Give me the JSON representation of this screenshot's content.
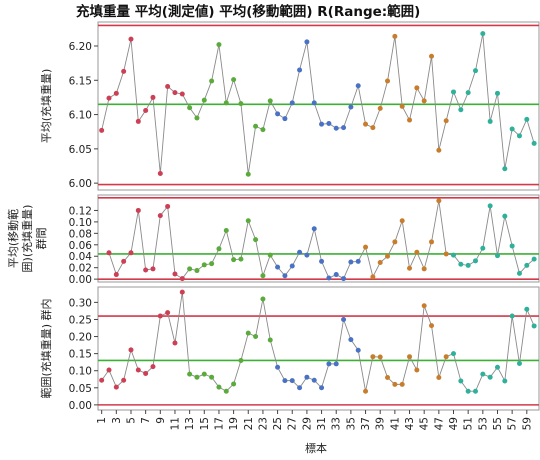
{
  "title": "充填重量 平均(測定値) 平均(移動範囲) R(Range:範囲)",
  "xlabel": "標本",
  "colors": {
    "limit": "#d23a4a",
    "center": "#3bb034",
    "connector": "#8a8a8a",
    "series": [
      "#cc3f55",
      "#5aab3c",
      "#4a72c4",
      "#c87d2c",
      "#2fb09a"
    ]
  },
  "xticks": [
    "1",
    "3",
    "5",
    "7",
    "9",
    "11",
    "13",
    "15",
    "17",
    "19",
    "21",
    "23",
    "25",
    "27",
    "29",
    "31",
    "33",
    "35",
    "37",
    "39",
    "41",
    "43",
    "45",
    "47",
    "49",
    "51",
    "53",
    "55",
    "57",
    "59"
  ],
  "chart_data": [
    {
      "type": "line",
      "panel": "mean",
      "ylabel": "平均(充填重量)",
      "ylim": [
        5.99,
        6.235
      ],
      "yticks": [
        "6.00",
        "6.05",
        "6.10",
        "6.15",
        "6.20"
      ],
      "ucl": 6.23,
      "cl": 6.115,
      "lcl": 5.998,
      "x": [
        1,
        2,
        3,
        4,
        5,
        6,
        7,
        8,
        9,
        10,
        11,
        12,
        13,
        14,
        15,
        16,
        17,
        18,
        19,
        20,
        21,
        22,
        23,
        24,
        25,
        26,
        27,
        28,
        29,
        30,
        31,
        32,
        33,
        34,
        35,
        36,
        37,
        38,
        39,
        40,
        41,
        42,
        43,
        44,
        45,
        46,
        47,
        48,
        49,
        50,
        51,
        52,
        53,
        54,
        55,
        56,
        57,
        58,
        59,
        60
      ],
      "values": [
        6.077,
        6.124,
        6.131,
        6.163,
        6.21,
        6.09,
        6.106,
        6.125,
        6.014,
        6.141,
        6.132,
        6.13,
        6.11,
        6.095,
        6.121,
        6.149,
        6.202,
        6.117,
        6.151,
        6.116,
        6.013,
        6.083,
        6.078,
        6.12,
        6.101,
        6.094,
        6.117,
        6.165,
        6.206,
        6.117,
        6.086,
        6.087,
        6.08,
        6.081,
        6.111,
        6.142,
        6.086,
        6.081,
        6.109,
        6.149,
        6.214,
        6.112,
        6.092,
        6.139,
        6.12,
        6.185,
        6.048,
        6.091,
        6.133,
        6.107,
        6.132,
        6.164,
        6.218,
        6.09,
        6.131,
        6.021,
        6.079,
        6.069,
        6.093,
        6.058
      ],
      "series_colors": [
        0,
        0,
        0,
        0,
        0,
        0,
        0,
        0,
        0,
        0,
        0,
        0,
        1,
        1,
        1,
        1,
        1,
        1,
        1,
        1,
        1,
        1,
        1,
        1,
        2,
        2,
        2,
        2,
        2,
        2,
        2,
        2,
        2,
        2,
        2,
        2,
        3,
        3,
        3,
        3,
        3,
        3,
        3,
        3,
        3,
        3,
        3,
        3,
        4,
        4,
        4,
        4,
        4,
        4,
        4,
        4,
        4,
        4,
        4,
        4
      ]
    },
    {
      "type": "line",
      "panel": "moving-range",
      "ylabel": [
        "平均(移動範",
        "囲)(充填重量)",
        "群間"
      ],
      "ylim": [
        -0.005,
        0.147
      ],
      "yticks": [
        "0.00",
        "0.02",
        "0.04",
        "0.06",
        "0.08",
        "0.10",
        "0.12"
      ],
      "ucl": 0.142,
      "cl": 0.044,
      "lcl": 0.0,
      "x": [
        2,
        3,
        4,
        5,
        6,
        7,
        8,
        9,
        10,
        11,
        12,
        13,
        14,
        15,
        16,
        17,
        18,
        19,
        20,
        21,
        22,
        23,
        24,
        25,
        26,
        27,
        28,
        29,
        30,
        31,
        32,
        33,
        34,
        35,
        36,
        37,
        38,
        39,
        40,
        41,
        42,
        43,
        44,
        45,
        46,
        47,
        48,
        49,
        50,
        51,
        52,
        53,
        54,
        55,
        56,
        57,
        58,
        59,
        60
      ],
      "values": [
        0.046,
        0.008,
        0.031,
        0.046,
        0.12,
        0.016,
        0.018,
        0.111,
        0.127,
        0.009,
        0.001,
        0.018,
        0.015,
        0.025,
        0.027,
        0.053,
        0.085,
        0.034,
        0.035,
        0.102,
        0.069,
        0.006,
        0.042,
        0.021,
        0.006,
        0.023,
        0.047,
        0.042,
        0.088,
        0.031,
        0.002,
        0.008,
        0.001,
        0.03,
        0.031,
        0.056,
        0.004,
        0.029,
        0.04,
        0.065,
        0.102,
        0.019,
        0.047,
        0.018,
        0.065,
        0.137,
        0.044,
        0.042,
        0.026,
        0.024,
        0.032,
        0.054,
        0.128,
        0.041,
        0.11,
        0.058,
        0.01,
        0.024,
        0.035
      ],
      "series_colors": [
        0,
        0,
        0,
        0,
        0,
        0,
        0,
        0,
        0,
        0,
        0,
        1,
        1,
        1,
        1,
        1,
        1,
        1,
        1,
        1,
        1,
        1,
        1,
        2,
        2,
        2,
        2,
        2,
        2,
        2,
        2,
        2,
        2,
        2,
        2,
        3,
        3,
        3,
        3,
        3,
        3,
        3,
        3,
        3,
        3,
        3,
        3,
        4,
        4,
        4,
        4,
        4,
        4,
        4,
        4,
        4,
        4,
        4,
        4
      ]
    },
    {
      "type": "line",
      "panel": "range",
      "ylabel": [
        "範囲(充填重量) 群内"
      ],
      "ylim": [
        -0.015,
        0.345
      ],
      "yticks": [
        "0.00",
        "0.05",
        "0.10",
        "0.15",
        "0.20",
        "0.25",
        "0.30"
      ],
      "ucl": 0.26,
      "cl": 0.13,
      "lcl": 0.0,
      "x": [
        1,
        2,
        3,
        4,
        5,
        6,
        7,
        8,
        9,
        10,
        11,
        12,
        13,
        14,
        15,
        16,
        17,
        18,
        19,
        20,
        21,
        22,
        23,
        24,
        25,
        26,
        27,
        28,
        29,
        30,
        31,
        32,
        33,
        34,
        35,
        36,
        37,
        38,
        39,
        40,
        41,
        42,
        43,
        44,
        45,
        46,
        47,
        48,
        49,
        50,
        51,
        52,
        53,
        54,
        55,
        56,
        57,
        58,
        59,
        60
      ],
      "values": [
        0.072,
        0.102,
        0.052,
        0.072,
        0.161,
        0.102,
        0.092,
        0.112,
        0.26,
        0.27,
        0.181,
        0.33,
        0.09,
        0.081,
        0.09,
        0.081,
        0.052,
        0.04,
        0.061,
        0.13,
        0.21,
        0.2,
        0.31,
        0.19,
        0.11,
        0.071,
        0.071,
        0.05,
        0.081,
        0.072,
        0.05,
        0.12,
        0.12,
        0.25,
        0.191,
        0.16,
        0.04,
        0.141,
        0.14,
        0.08,
        0.06,
        0.06,
        0.141,
        0.102,
        0.29,
        0.232,
        0.08,
        0.141,
        0.15,
        0.07,
        0.04,
        0.04,
        0.09,
        0.081,
        0.11,
        0.07,
        0.26,
        0.121,
        0.28,
        0.231
      ],
      "series_colors": [
        0,
        0,
        0,
        0,
        0,
        0,
        0,
        0,
        0,
        0,
        0,
        0,
        1,
        1,
        1,
        1,
        1,
        1,
        1,
        1,
        1,
        1,
        1,
        1,
        2,
        2,
        2,
        2,
        2,
        2,
        2,
        2,
        2,
        2,
        2,
        2,
        3,
        3,
        3,
        3,
        3,
        3,
        3,
        3,
        3,
        3,
        3,
        3,
        4,
        4,
        4,
        4,
        4,
        4,
        4,
        4,
        4,
        4,
        4,
        4
      ]
    }
  ]
}
